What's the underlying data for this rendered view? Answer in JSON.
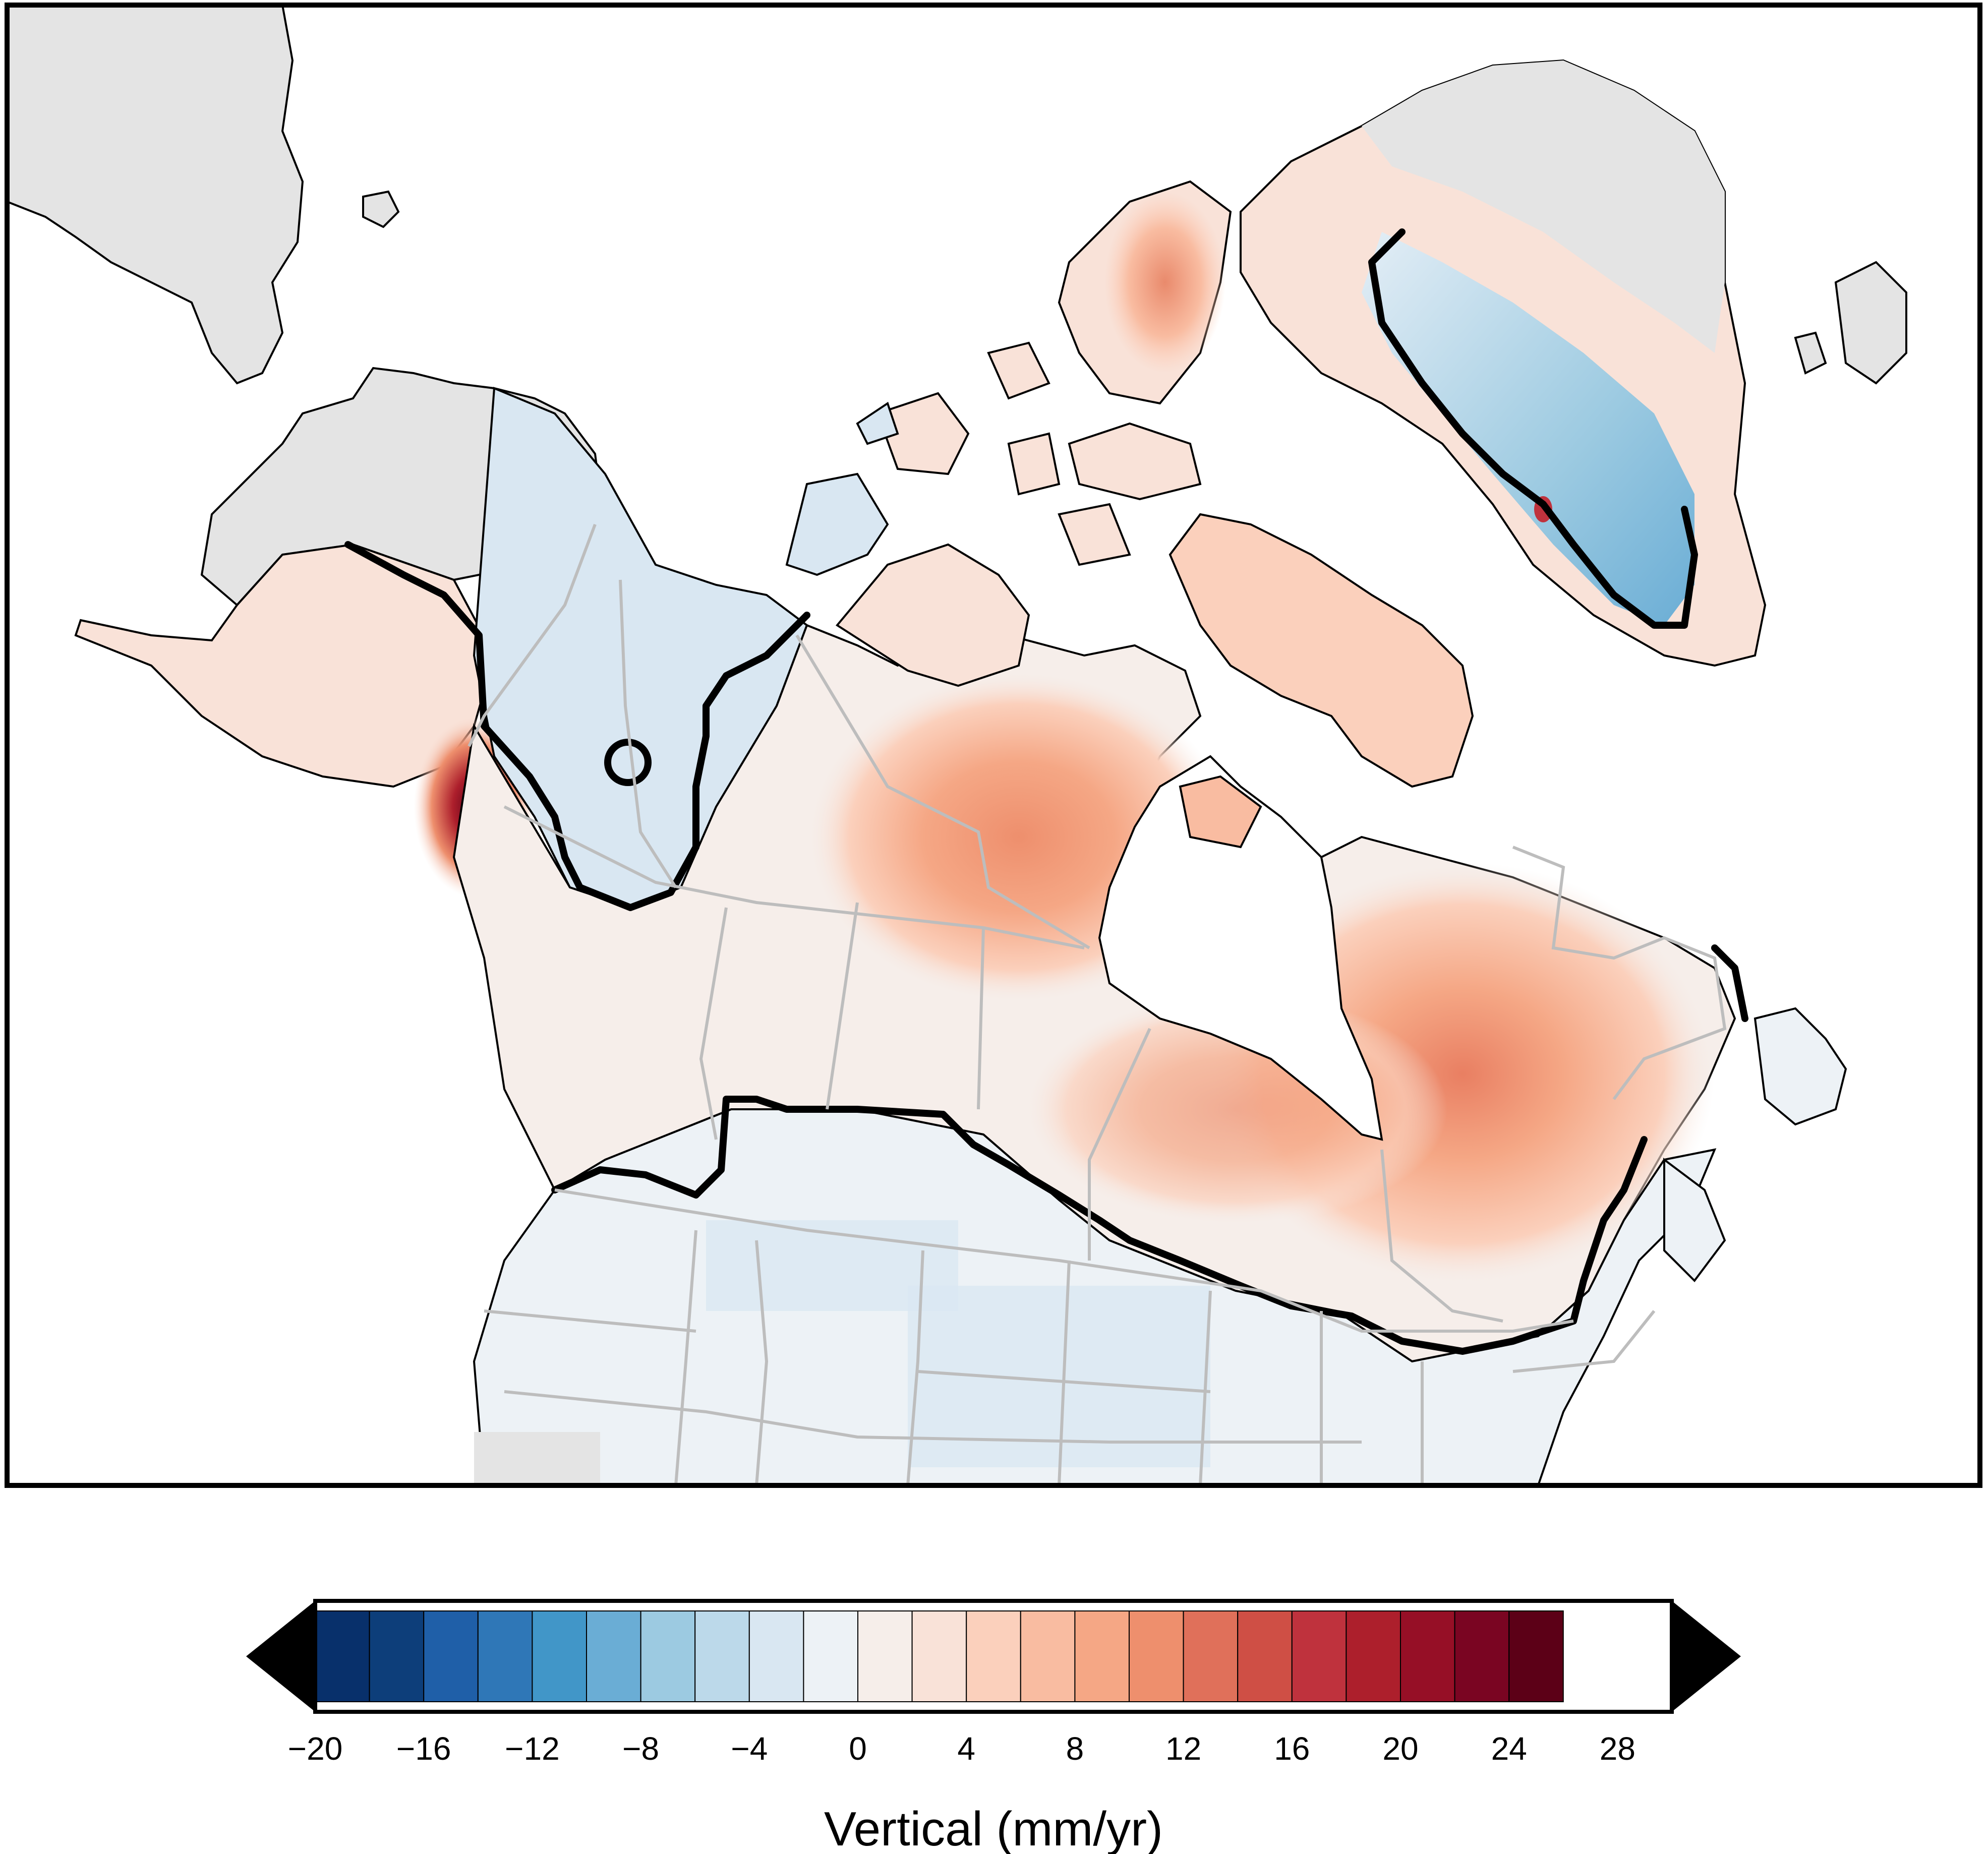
{
  "colorbar": {
    "title": "Vertical (mm/yr)",
    "tick_labels": [
      "−20",
      "−16",
      "−12",
      "−8",
      "−4",
      "0",
      "4",
      "8",
      "12",
      "16",
      "20",
      "24",
      "28"
    ],
    "tick_values": [
      -20,
      -16,
      -12,
      -8,
      -4,
      0,
      4,
      8,
      12,
      16,
      20,
      24,
      28
    ],
    "min": -20,
    "max": 30,
    "step": 2,
    "extend": "both",
    "under_color": "#000000",
    "over_color": "#000000",
    "colors": [
      "#08306b",
      "#0d3e7a",
      "#1f5fa8",
      "#2f77b7",
      "#4196c8",
      "#6aadd5",
      "#9ccae1",
      "#bcd9ea",
      "#d9e7f2",
      "#edf2f6",
      "#f6eeea",
      "#f9e2d8",
      "#fbd0bc",
      "#f9bca1",
      "#f5a785",
      "#ee8f6d",
      "#e0705a",
      "#cf4f45",
      "#bf323d",
      "#ad1f2c",
      "#960f26",
      "#7a0522",
      "#5c0017"
    ]
  },
  "map": {
    "zero_contour_color": "#000000",
    "no_data_color": "#e4e4e4",
    "boundary_color": "#bdbdbd",
    "coastline_color": "#000000"
  }
}
